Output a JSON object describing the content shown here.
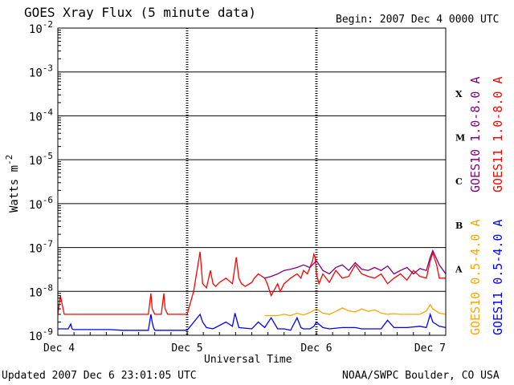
{
  "header": {
    "title": "GOES Xray Flux (5 minute data)",
    "begin": "Begin:  2007 Dec 4 0000 UTC"
  },
  "footer": {
    "updated": "Updated 2007 Dec  6 23:01:05 UTC",
    "credit": "NOAA/SWPC Boulder, CO USA"
  },
  "chart_data": {
    "type": "line",
    "title": "GOES Xray Flux (5 minute data)",
    "xlabel": "Universal Time",
    "ylabel": "Watts m",
    "ylabel_sup": "-2",
    "yscale": "log",
    "ylim": [
      1e-09,
      0.01
    ],
    "y_ticks": [
      {
        "value": 1e-09,
        "label": "10",
        "exp": "-9"
      },
      {
        "value": 1e-08,
        "label": "10",
        "exp": "-8"
      },
      {
        "value": 1e-07,
        "label": "10",
        "exp": "-7"
      },
      {
        "value": 1e-06,
        "label": "10",
        "exp": "-6"
      },
      {
        "value": 1e-05,
        "label": "10",
        "exp": "-5"
      },
      {
        "value": 0.0001,
        "label": "10",
        "exp": "-4"
      },
      {
        "value": 0.001,
        "label": "10",
        "exp": "-3"
      },
      {
        "value": 0.01,
        "label": "10",
        "exp": "-2"
      }
    ],
    "xlim": [
      0,
      3
    ],
    "x_ticks": [
      {
        "value": 0,
        "label": "Dec 4"
      },
      {
        "value": 1,
        "label": "Dec 5"
      },
      {
        "value": 2,
        "label": "Dec 6"
      },
      {
        "value": 3,
        "label": "Dec 7"
      }
    ],
    "flare_classes": [
      {
        "label": "X",
        "value": 0.00032
      },
      {
        "label": "M",
        "value": 3.2e-05
      },
      {
        "label": "C",
        "value": 3.2e-06
      },
      {
        "label": "B",
        "value": 3.2e-07
      },
      {
        "label": "A",
        "value": 3.2e-08
      }
    ],
    "grid": true,
    "series": [
      {
        "name": "GOES11 0.5-4.0 A",
        "color": "#0000ff",
        "x": [
          0,
          0.08,
          0.1,
          0.11,
          0.12,
          0.4,
          0.5,
          0.7,
          0.72,
          0.73,
          0.74,
          0.75,
          0.8,
          0.9,
          0.97,
          1.0,
          1.1,
          1.12,
          1.15,
          1.2,
          1.3,
          1.35,
          1.37,
          1.4,
          1.5,
          1.55,
          1.6,
          1.65,
          1.7,
          1.75,
          1.8,
          1.85,
          1.88,
          1.9,
          1.95,
          1.98,
          2.0,
          2.05,
          2.1,
          2.2,
          2.3,
          2.35,
          2.4,
          2.5,
          2.55,
          2.6,
          2.7,
          2.8,
          2.85,
          2.88,
          2.9,
          2.95,
          3.0
        ],
        "values": [
          1.4e-09,
          1.4e-09,
          1.8e-09,
          1.4e-09,
          1.35e-09,
          1.35e-09,
          1.3e-09,
          1.3e-09,
          3e-09,
          2e-09,
          1.5e-09,
          1.3e-09,
          1.3e-09,
          1.3e-09,
          1.3e-09,
          1.3e-09,
          3e-09,
          2e-09,
          1.5e-09,
          1.4e-09,
          2e-09,
          1.6e-09,
          3.2e-09,
          1.5e-09,
          1.4e-09,
          2e-09,
          1.5e-09,
          2.5e-09,
          1.4e-09,
          1.4e-09,
          1.3e-09,
          2.5e-09,
          1.5e-09,
          1.4e-09,
          1.4e-09,
          1.6e-09,
          2e-09,
          1.5e-09,
          1.4e-09,
          1.5e-09,
          1.5e-09,
          1.4e-09,
          1.4e-09,
          1.4e-09,
          2.2e-09,
          1.5e-09,
          1.5e-09,
          1.6e-09,
          1.5e-09,
          3e-09,
          2e-09,
          1.6e-09,
          1.5e-09
        ]
      },
      {
        "name": "GOES10 0.5-4.0 A",
        "color": "#ffa500",
        "x": [
          1.6,
          1.7,
          1.75,
          1.8,
          1.85,
          1.9,
          1.95,
          2.0,
          2.05,
          2.1,
          2.15,
          2.2,
          2.25,
          2.3,
          2.35,
          2.4,
          2.45,
          2.5,
          2.55,
          2.6,
          2.65,
          2.7,
          2.75,
          2.8,
          2.85,
          2.88,
          2.9,
          2.95,
          3.0
        ],
        "values": [
          2.8e-09,
          2.8e-09,
          3e-09,
          2.8e-09,
          3.2e-09,
          2.9e-09,
          3.3e-09,
          4e-09,
          3.2e-09,
          3e-09,
          3.5e-09,
          4.2e-09,
          3.6e-09,
          3.4e-09,
          4e-09,
          3.5e-09,
          3.8e-09,
          3.2e-09,
          3e-09,
          3.1e-09,
          3e-09,
          3e-09,
          3e-09,
          3e-09,
          3.6e-09,
          5e-09,
          4e-09,
          3.2e-09,
          3e-09
        ]
      },
      {
        "name": "GOES11 1.0-8.0 A",
        "color": "#ff0000",
        "x": [
          0,
          0.02,
          0.05,
          0.1,
          0.2,
          0.3,
          0.4,
          0.5,
          0.6,
          0.7,
          0.72,
          0.73,
          0.75,
          0.8,
          0.82,
          0.83,
          0.85,
          0.9,
          0.98,
          1.0,
          1.05,
          1.1,
          1.12,
          1.15,
          1.18,
          1.2,
          1.22,
          1.25,
          1.3,
          1.35,
          1.38,
          1.4,
          1.42,
          1.45,
          1.5,
          1.52,
          1.55,
          1.6,
          1.62,
          1.65,
          1.7,
          1.72,
          1.75,
          1.8,
          1.85,
          1.88,
          1.9,
          1.93,
          1.95,
          1.97,
          1.98,
          1.99,
          2.0,
          2.02,
          2.05,
          2.1,
          2.15,
          2.2,
          2.25,
          2.3,
          2.35,
          2.4,
          2.45,
          2.5,
          2.55,
          2.6,
          2.65,
          2.7,
          2.75,
          2.8,
          2.85,
          2.88,
          2.9,
          2.93,
          2.95,
          3.0
        ],
        "values": [
          3e-09,
          8e-09,
          3e-09,
          3e-09,
          3e-09,
          3e-09,
          3e-09,
          3e-09,
          3e-09,
          3e-09,
          9e-09,
          4e-09,
          3e-09,
          3e-09,
          9e-09,
          4e-09,
          3e-09,
          3e-09,
          3e-09,
          3e-09,
          1e-08,
          8e-08,
          1.5e-08,
          1.2e-08,
          3e-08,
          1.5e-08,
          1.3e-08,
          1.6e-08,
          2e-08,
          1.5e-08,
          6e-08,
          2e-08,
          1.5e-08,
          1.3e-08,
          1.6e-08,
          2e-08,
          2.5e-08,
          2e-08,
          1.5e-08,
          8e-09,
          1.5e-08,
          1e-08,
          1.5e-08,
          2e-08,
          2.5e-08,
          2e-08,
          3e-08,
          2.5e-08,
          3.5e-08,
          5e-08,
          7e-08,
          6e-08,
          2.5e-08,
          1.5e-08,
          2.5e-08,
          1.6e-08,
          3e-08,
          2e-08,
          2.2e-08,
          4e-08,
          2.5e-08,
          2.2e-08,
          2e-08,
          2.5e-08,
          1.5e-08,
          2e-08,
          2.5e-08,
          1.8e-08,
          3e-08,
          2.2e-08,
          2e-08,
          5e-08,
          7.5e-08,
          4e-08,
          2e-08,
          2e-08
        ]
      },
      {
        "name": "GOES10 1.0-8.0 A",
        "color": "#800080",
        "x": [
          1.6,
          1.65,
          1.7,
          1.75,
          1.8,
          1.85,
          1.9,
          1.95,
          2.0,
          2.05,
          2.1,
          2.15,
          2.2,
          2.25,
          2.3,
          2.35,
          2.4,
          2.45,
          2.5,
          2.55,
          2.6,
          2.65,
          2.7,
          2.75,
          2.8,
          2.85,
          2.88,
          2.9,
          2.95,
          3.0
        ],
        "values": [
          2e-08,
          2.2e-08,
          2.5e-08,
          3e-08,
          3.2e-08,
          3.5e-08,
          4e-08,
          3.5e-08,
          5e-08,
          3e-08,
          2.5e-08,
          3.5e-08,
          4e-08,
          3e-08,
          4.5e-08,
          3.2e-08,
          3e-08,
          3.5e-08,
          3e-08,
          3.8e-08,
          2.5e-08,
          3e-08,
          3.5e-08,
          2.5e-08,
          3.3e-08,
          3e-08,
          6e-08,
          8.5e-08,
          4e-08,
          2.5e-08
        ]
      }
    ]
  }
}
